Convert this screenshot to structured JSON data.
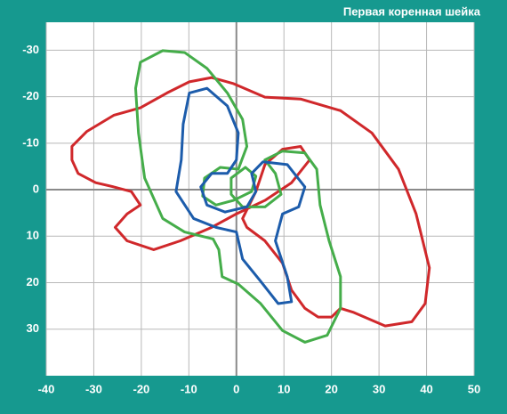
{
  "chart_data": {
    "type": "line",
    "title": "Первая коренная шейка",
    "xlim": [
      -40,
      50
    ],
    "ylim": [
      -36,
      40
    ],
    "y_inverted": true,
    "xticks": [
      -40,
      -30,
      -20,
      -10,
      0,
      10,
      20,
      30,
      40,
      50
    ],
    "yticks": [
      -30,
      -20,
      -10,
      0,
      10,
      20,
      30
    ],
    "grid": true,
    "series": [
      {
        "color": "#d0282b",
        "x": [
          -34.6,
          -31.5,
          -25.8,
          -20.2,
          -14.6,
          -9.9,
          -5.2,
          -0.6,
          6.0,
          13.5,
          21.9,
          28.5,
          34.1,
          37.8,
          40.6,
          39.7,
          36.9,
          31.3,
          24.7,
          21.9,
          20.0,
          17.2,
          14.4,
          11.6,
          9.7,
          6.0,
          2.2,
          1.3,
          4.1,
          6.0,
          9.7,
          13.5,
          15.4,
          11.6,
          6.0,
          0,
          -5.2,
          -11.8,
          -17.4,
          -23.0,
          -25.5,
          -23.0,
          -20.2,
          -22.1,
          -25.8,
          -29.6,
          -33.3,
          -34.6
        ],
        "values": [
          -9.3,
          -12.5,
          -16.0,
          -17.6,
          -20.8,
          -23.2,
          -24.1,
          -22.8,
          -19.9,
          -19.5,
          -17.0,
          -12.2,
          -4.4,
          5.2,
          16.8,
          24.5,
          28.4,
          29.3,
          26.4,
          25.5,
          27.4,
          27.4,
          25.5,
          21.6,
          15.8,
          11.0,
          8.1,
          6.2,
          0.4,
          -5.4,
          -8.7,
          -9.3,
          -6.4,
          -1.5,
          2.3,
          5.2,
          8.1,
          11.0,
          12.9,
          11.0,
          8.1,
          5.2,
          3.3,
          0.4,
          -0.6,
          -1.5,
          -3.5,
          -6.4
        ]
      },
      {
        "color": "#45ad4a",
        "x": [
          -20.2,
          -15.5,
          -10.9,
          -6.2,
          -1.9,
          1.3,
          2.2,
          0.4,
          -3.4,
          -6.7,
          -7.1,
          -4.3,
          -0.6,
          3.2,
          4.1,
          1.9,
          -1.1,
          -1.1,
          1.3,
          6.0,
          9.4,
          8.2,
          6.0,
          9.7,
          14.4,
          16.9,
          17.6,
          19.5,
          21.9,
          21.9,
          19.1,
          14.4,
          9.7,
          5.1,
          0.4,
          -3.0,
          -3.7,
          -4.9,
          -10.9,
          -15.5,
          -19.3,
          -20.6,
          -21.2
        ],
        "values": [
          -27.4,
          -29.9,
          -29.5,
          -26.1,
          -20.8,
          -15.1,
          -9.3,
          -4.4,
          -4.8,
          -2.5,
          1.4,
          3.3,
          2.3,
          0.4,
          -2.9,
          -4.8,
          -2.5,
          1.0,
          3.7,
          3.7,
          1.0,
          -3.5,
          -6.4,
          -8.3,
          -7.9,
          -4.4,
          3.3,
          11.0,
          18.7,
          25.5,
          31.3,
          32.8,
          30.3,
          24.5,
          20.3,
          18.7,
          12.9,
          10.6,
          9.1,
          6.2,
          -2.5,
          -12.2,
          -21.8
        ]
      },
      {
        "color": "#1c5cab",
        "x": [
          -9.9,
          -6.2,
          -1.9,
          0.4,
          0,
          -1.9,
          -5.2,
          -7.5,
          -6.2,
          -2.4,
          2.2,
          4.1,
          3.2,
          5.6,
          10.7,
          14.4,
          13.1,
          9.7,
          8.2,
          10.7,
          11.6,
          8.8,
          5.1,
          1.3,
          0,
          -4.3,
          -9.0,
          -12.7,
          -11.6,
          -11.2
        ],
        "values": [
          -20.8,
          -21.8,
          -18.0,
          -12.2,
          -6.4,
          -3.5,
          -3.5,
          -0.6,
          3.3,
          4.8,
          3.7,
          0.4,
          -3.5,
          -6.0,
          -5.4,
          -0.6,
          3.7,
          5.2,
          11.0,
          18.7,
          24.1,
          24.5,
          19.7,
          14.9,
          9.1,
          8.1,
          6.2,
          0.4,
          -6.4,
          -14.1
        ]
      }
    ]
  }
}
